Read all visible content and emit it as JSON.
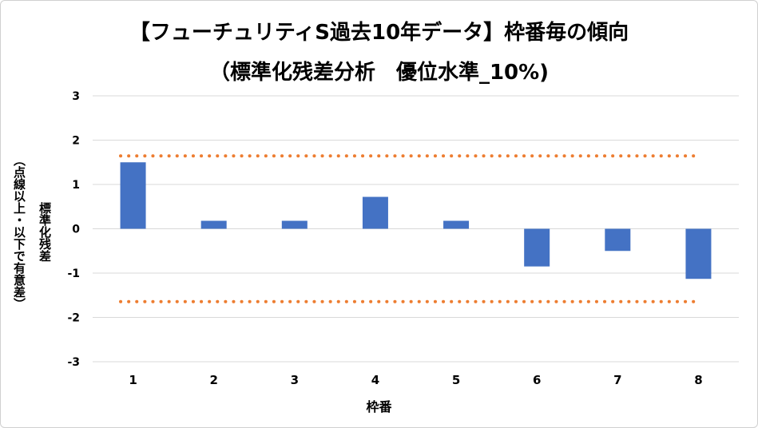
{
  "chart_data": {
    "type": "bar",
    "title": "【フューチュリティS過去10年データ】枠番毎の傾向",
    "subtitle": "（標準化残差分析　優位水準_10%)",
    "xlabel": "枠番",
    "ylabel": "標準化残差",
    "ylabel_note": "（点線以上・以下で有意差）",
    "categories": [
      "1",
      "2",
      "3",
      "4",
      "5",
      "6",
      "7",
      "8"
    ],
    "values": [
      1.5,
      0.18,
      0.18,
      0.72,
      0.18,
      -0.85,
      -0.5,
      -1.13
    ],
    "ylim": [
      -3,
      3
    ],
    "yticks": [
      "3",
      "2",
      "1",
      "0",
      "-1",
      "-2",
      "-3"
    ],
    "ytick_values": [
      3,
      2,
      1,
      0,
      -1,
      -2,
      -3
    ],
    "threshold_upper": 1.645,
    "threshold_lower": -1.645,
    "grid": true,
    "bar_color": "#4472c4",
    "threshold_color": "#ed7d31",
    "grid_color": "#d9d9d9"
  }
}
